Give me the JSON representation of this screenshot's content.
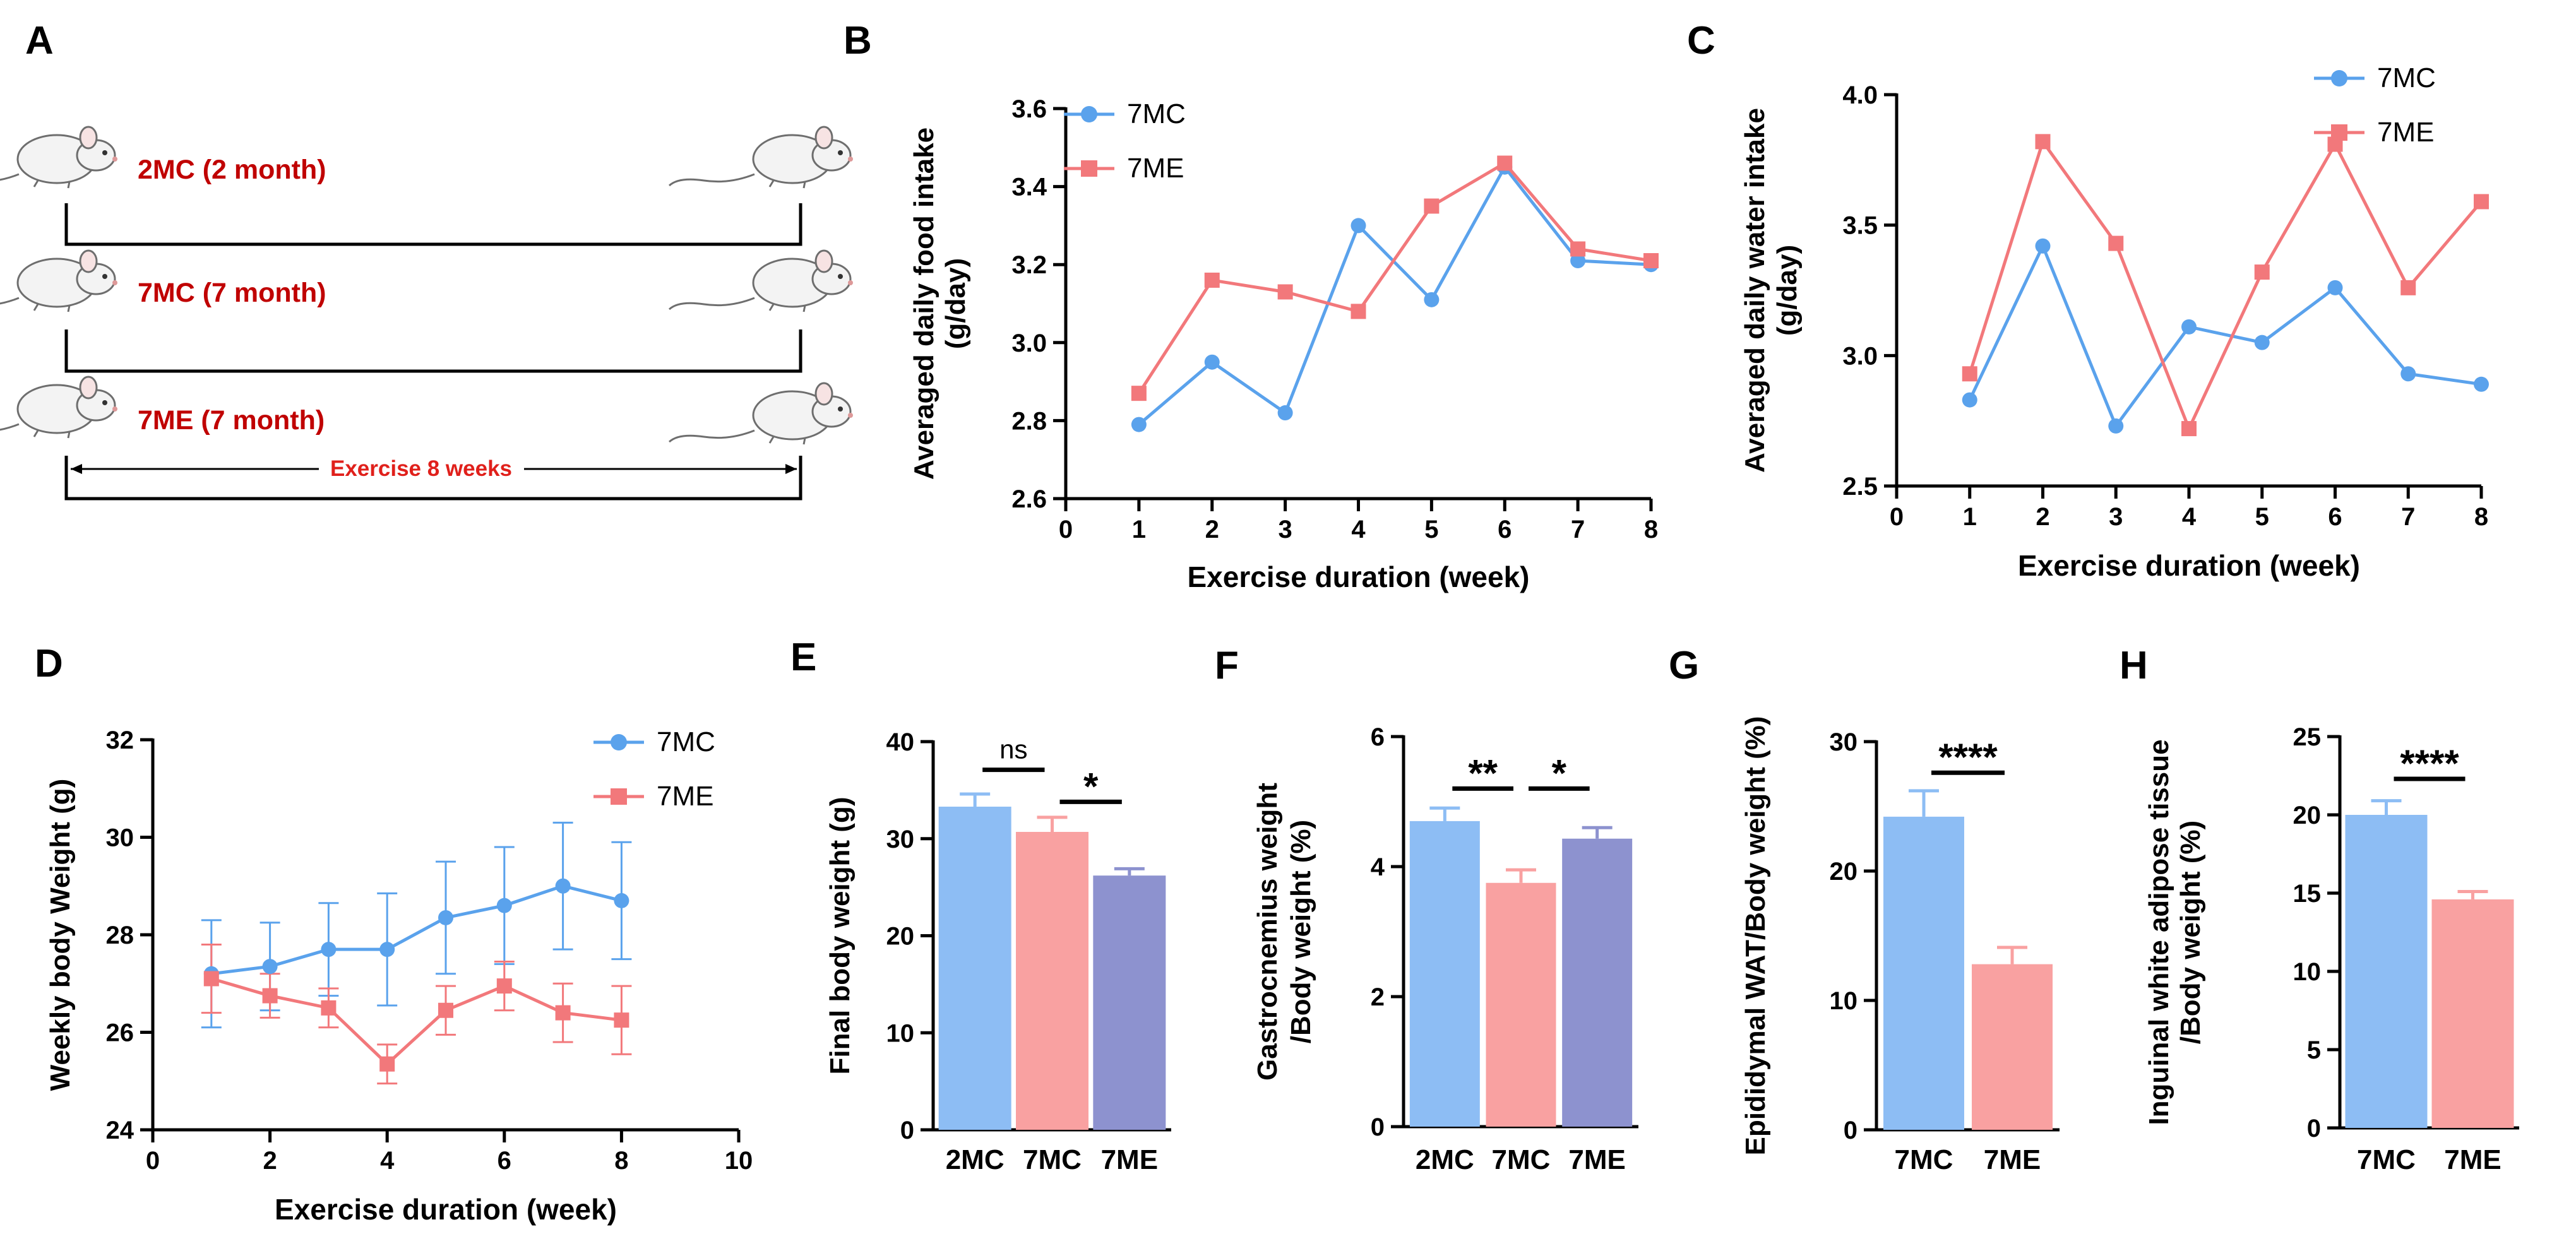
{
  "colors": {
    "blue": "#5AA2EC",
    "red": "#F2787B",
    "blueFill": "#8DBDF4",
    "redFill": "#F9A1A1",
    "purpleFill": "#8D92CF",
    "darkRed": "#C00000",
    "axis": "#000000"
  },
  "schematic": {
    "panel_letter": "A",
    "groups": [
      {
        "label": "2MC (2 month)"
      },
      {
        "label": "7MC (7 month)"
      },
      {
        "label": "7ME (7 month)"
      }
    ],
    "exercise_label": "Exercise 8 weeks"
  },
  "chart_data": [
    {
      "id": "B",
      "panel_letter": "B",
      "type": "line",
      "xlabel": "Exercise duration (week)",
      "ylabel": [
        "Averaged daily food intake",
        "(g/day)"
      ],
      "xlim": [
        0,
        8
      ],
      "xticks": [
        0,
        1,
        2,
        3,
        4,
        5,
        6,
        7,
        8
      ],
      "ylim": [
        2.6,
        3.6
      ],
      "yticks": [
        "2.6",
        "2.8",
        "3.0",
        "3.2",
        "3.4",
        "3.6"
      ],
      "legend_position": "top-left",
      "series": [
        {
          "name": "7MC",
          "marker": "circle",
          "x": [
            1,
            2,
            3,
            4,
            5,
            6,
            7,
            8
          ],
          "values": [
            2.79,
            2.95,
            2.82,
            3.3,
            3.11,
            3.45,
            3.21,
            3.2
          ]
        },
        {
          "name": "7ME",
          "marker": "square",
          "x": [
            1,
            2,
            3,
            4,
            5,
            6,
            7,
            8
          ],
          "values": [
            2.87,
            3.16,
            3.13,
            3.08,
            3.35,
            3.46,
            3.24,
            3.21
          ]
        }
      ]
    },
    {
      "id": "C",
      "panel_letter": "C",
      "type": "line",
      "xlabel": "Exercise duration (week)",
      "ylabel": [
        "Averaged daily water intake",
        "(g/day)"
      ],
      "xlim": [
        0,
        8
      ],
      "xticks": [
        0,
        1,
        2,
        3,
        4,
        5,
        6,
        7,
        8
      ],
      "ylim": [
        2.5,
        4.0
      ],
      "yticks": [
        "2.5",
        "3.0",
        "3.5",
        "4.0"
      ],
      "legend_position": "top-right",
      "series": [
        {
          "name": "7MC",
          "marker": "circle",
          "x": [
            1,
            2,
            3,
            4,
            5,
            6,
            7,
            8
          ],
          "values": [
            2.83,
            3.42,
            2.73,
            3.11,
            3.05,
            3.26,
            2.93,
            2.89
          ]
        },
        {
          "name": "7ME",
          "marker": "square",
          "x": [
            1,
            2,
            3,
            4,
            5,
            6,
            7,
            8
          ],
          "values": [
            2.93,
            3.82,
            3.43,
            2.72,
            3.32,
            3.81,
            3.26,
            3.59
          ]
        }
      ]
    },
    {
      "id": "D",
      "panel_letter": "D",
      "type": "line",
      "xlabel": "Exercise duration (week)",
      "ylabel": [
        "Weekly body Weight (g)"
      ],
      "xlim": [
        0,
        10
      ],
      "xticks": [
        0,
        2,
        4,
        6,
        8,
        10
      ],
      "ylim": [
        24,
        32
      ],
      "yticks": [
        "24",
        "26",
        "28",
        "30",
        "32"
      ],
      "legend_position": "top-right",
      "series": [
        {
          "name": "7MC",
          "marker": "circle",
          "x": [
            1,
            2,
            3,
            4,
            5,
            6,
            7,
            8
          ],
          "values": [
            27.2,
            27.35,
            27.7,
            27.7,
            28.35,
            28.6,
            29.0,
            28.7
          ],
          "errors": [
            1.1,
            0.9,
            0.95,
            1.15,
            1.15,
            1.2,
            1.3,
            1.2
          ]
        },
        {
          "name": "7ME",
          "marker": "square",
          "x": [
            1,
            2,
            3,
            4,
            5,
            6,
            7,
            8
          ],
          "values": [
            27.1,
            26.75,
            26.5,
            25.35,
            26.45,
            26.95,
            26.4,
            26.25
          ],
          "errors": [
            0.7,
            0.45,
            0.4,
            0.4,
            0.5,
            0.5,
            0.6,
            0.7
          ]
        }
      ]
    },
    {
      "id": "E",
      "panel_letter": "E",
      "type": "bar",
      "ylabel": [
        "Final body weight (g)"
      ],
      "categories": [
        "2MC",
        "7MC",
        "7ME"
      ],
      "values": [
        33.3,
        30.7,
        26.2
      ],
      "errors": [
        1.3,
        1.5,
        0.7
      ],
      "ylim": [
        0,
        40
      ],
      "yticks": [
        "0",
        "10",
        "20",
        "30",
        "40"
      ],
      "significance": [
        {
          "from": 0,
          "to": 1,
          "label": "ns",
          "y": 37.1
        },
        {
          "from": 1,
          "to": 2,
          "label": "*",
          "y": 33.8
        }
      ]
    },
    {
      "id": "F",
      "panel_letter": "F",
      "type": "bar",
      "ylabel": [
        "Gastrocnemius weight",
        "/Body weight (%)"
      ],
      "categories": [
        "2MC",
        "7MC",
        "7ME"
      ],
      "values": [
        4.7,
        3.75,
        4.43
      ],
      "errors": [
        0.2,
        0.2,
        0.17
      ],
      "ylim": [
        0,
        6
      ],
      "yticks": [
        "0",
        "2",
        "4",
        "6"
      ],
      "significance": [
        {
          "from": 0,
          "to": 1,
          "label": "**",
          "y": 5.2
        },
        {
          "from": 1,
          "to": 2,
          "label": "*",
          "y": 5.2
        }
      ]
    },
    {
      "id": "G",
      "panel_letter": "G",
      "type": "bar",
      "ylabel": [
        "Epididymal WAT/Body weight (%)"
      ],
      "categories": [
        "7MC",
        "7ME"
      ],
      "values": [
        24.2,
        12.8
      ],
      "errors": [
        2.0,
        1.3
      ],
      "ylim": [
        0,
        30
      ],
      "yticks": [
        "0",
        "10",
        "20",
        "30"
      ],
      "significance": [
        {
          "from": 0,
          "to": 1,
          "label": "****",
          "y": 27.6
        }
      ]
    },
    {
      "id": "H",
      "panel_letter": "H",
      "type": "bar",
      "ylabel": [
        "Inguinal white adipose tissue",
        "/Body weight (%)"
      ],
      "categories": [
        "7MC",
        "7ME"
      ],
      "values": [
        20.0,
        14.6
      ],
      "errors": [
        0.9,
        0.5
      ],
      "ylim": [
        0,
        25
      ],
      "yticks": [
        "0",
        "5",
        "10",
        "15",
        "20",
        "25"
      ],
      "significance": [
        {
          "from": 0,
          "to": 1,
          "label": "****",
          "y": 22.3
        }
      ]
    }
  ]
}
